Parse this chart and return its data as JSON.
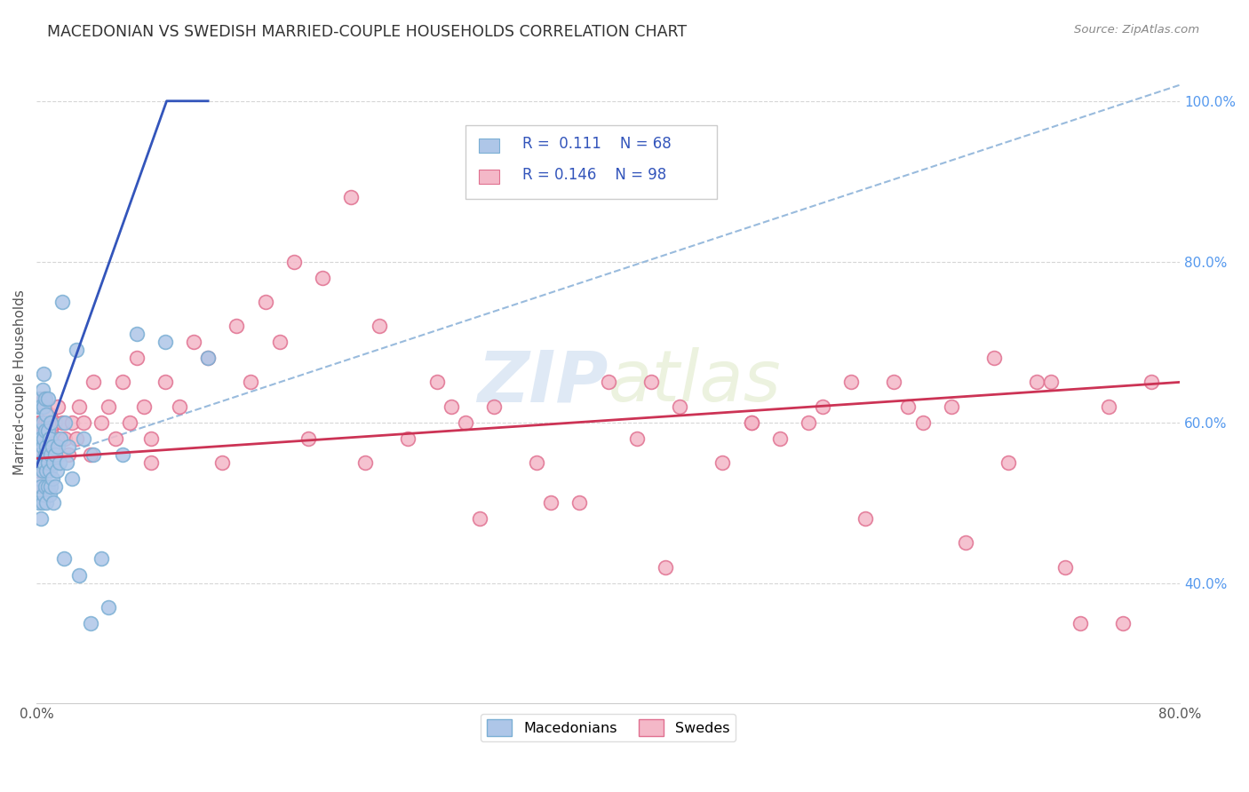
{
  "title": "MACEDONIAN VS SWEDISH MARRIED-COUPLE HOUSEHOLDS CORRELATION CHART",
  "source": "Source: ZipAtlas.com",
  "ylabel": "Married-couple Households",
  "macedonian_color": "#aec6e8",
  "macedonian_edge_color": "#7bafd4",
  "swedish_color": "#f4b8c8",
  "swedish_edge_color": "#e07090",
  "macedonian_R": 0.111,
  "macedonian_N": 68,
  "swedish_R": 0.146,
  "swedish_N": 98,
  "macedonian_trend_color": "#3355bb",
  "swedish_trend_color": "#cc3355",
  "dashed_line_color": "#99bbdd",
  "watermark_zip": "ZIP",
  "watermark_atlas": "atlas",
  "xlim": [
    0.0,
    0.8
  ],
  "ylim": [
    0.25,
    1.05
  ],
  "mac_x": [
    0.001,
    0.001,
    0.001,
    0.002,
    0.002,
    0.002,
    0.002,
    0.002,
    0.003,
    0.003,
    0.003,
    0.003,
    0.003,
    0.004,
    0.004,
    0.004,
    0.004,
    0.004,
    0.005,
    0.005,
    0.005,
    0.005,
    0.005,
    0.006,
    0.006,
    0.006,
    0.006,
    0.007,
    0.007,
    0.007,
    0.007,
    0.008,
    0.008,
    0.008,
    0.008,
    0.009,
    0.009,
    0.009,
    0.01,
    0.01,
    0.01,
    0.011,
    0.011,
    0.012,
    0.012,
    0.013,
    0.013,
    0.014,
    0.015,
    0.016,
    0.017,
    0.018,
    0.019,
    0.02,
    0.021,
    0.022,
    0.025,
    0.028,
    0.03,
    0.033,
    0.038,
    0.04,
    0.045,
    0.05,
    0.06,
    0.07,
    0.09,
    0.12
  ],
  "mac_y": [
    0.55,
    0.58,
    0.62,
    0.5,
    0.53,
    0.56,
    0.59,
    0.63,
    0.48,
    0.52,
    0.55,
    0.58,
    0.62,
    0.5,
    0.54,
    0.57,
    0.6,
    0.64,
    0.51,
    0.55,
    0.58,
    0.62,
    0.66,
    0.52,
    0.56,
    0.59,
    0.63,
    0.5,
    0.54,
    0.57,
    0.61,
    0.52,
    0.55,
    0.59,
    0.63,
    0.51,
    0.54,
    0.58,
    0.52,
    0.56,
    0.6,
    0.53,
    0.57,
    0.5,
    0.55,
    0.52,
    0.56,
    0.54,
    0.57,
    0.55,
    0.58,
    0.75,
    0.43,
    0.6,
    0.55,
    0.57,
    0.53,
    0.69,
    0.41,
    0.58,
    0.35,
    0.56,
    0.43,
    0.37,
    0.56,
    0.71,
    0.7,
    0.68
  ],
  "swe_x": [
    0.001,
    0.001,
    0.002,
    0.002,
    0.003,
    0.003,
    0.003,
    0.004,
    0.004,
    0.004,
    0.005,
    0.005,
    0.005,
    0.006,
    0.006,
    0.007,
    0.007,
    0.008,
    0.008,
    0.009,
    0.009,
    0.01,
    0.01,
    0.011,
    0.012,
    0.013,
    0.014,
    0.015,
    0.016,
    0.018,
    0.02,
    0.022,
    0.025,
    0.028,
    0.03,
    0.033,
    0.038,
    0.04,
    0.045,
    0.05,
    0.055,
    0.06,
    0.065,
    0.07,
    0.075,
    0.08,
    0.09,
    0.1,
    0.11,
    0.12,
    0.13,
    0.14,
    0.15,
    0.16,
    0.18,
    0.2,
    0.22,
    0.24,
    0.26,
    0.28,
    0.3,
    0.32,
    0.35,
    0.38,
    0.4,
    0.42,
    0.45,
    0.48,
    0.5,
    0.52,
    0.55,
    0.58,
    0.6,
    0.62,
    0.65,
    0.68,
    0.7,
    0.72,
    0.75,
    0.78,
    0.17,
    0.23,
    0.29,
    0.36,
    0.43,
    0.5,
    0.57,
    0.64,
    0.71,
    0.76,
    0.08,
    0.19,
    0.31,
    0.44,
    0.54,
    0.61,
    0.67,
    0.73
  ],
  "swe_y": [
    0.56,
    0.6,
    0.54,
    0.58,
    0.52,
    0.56,
    0.6,
    0.54,
    0.58,
    0.62,
    0.55,
    0.59,
    0.63,
    0.56,
    0.6,
    0.54,
    0.58,
    0.55,
    0.6,
    0.57,
    0.61,
    0.55,
    0.59,
    0.57,
    0.55,
    0.6,
    0.58,
    0.62,
    0.56,
    0.6,
    0.58,
    0.56,
    0.6,
    0.58,
    0.62,
    0.6,
    0.56,
    0.65,
    0.6,
    0.62,
    0.58,
    0.65,
    0.6,
    0.68,
    0.62,
    0.58,
    0.65,
    0.62,
    0.7,
    0.68,
    0.55,
    0.72,
    0.65,
    0.75,
    0.8,
    0.78,
    0.88,
    0.72,
    0.58,
    0.65,
    0.6,
    0.62,
    0.55,
    0.5,
    0.65,
    0.58,
    0.62,
    0.55,
    0.6,
    0.58,
    0.62,
    0.48,
    0.65,
    0.6,
    0.45,
    0.55,
    0.65,
    0.42,
    0.62,
    0.65,
    0.7,
    0.55,
    0.62,
    0.5,
    0.65,
    0.6,
    0.65,
    0.62,
    0.65,
    0.35,
    0.55,
    0.58,
    0.48,
    0.42,
    0.6,
    0.62,
    0.68,
    0.35
  ]
}
